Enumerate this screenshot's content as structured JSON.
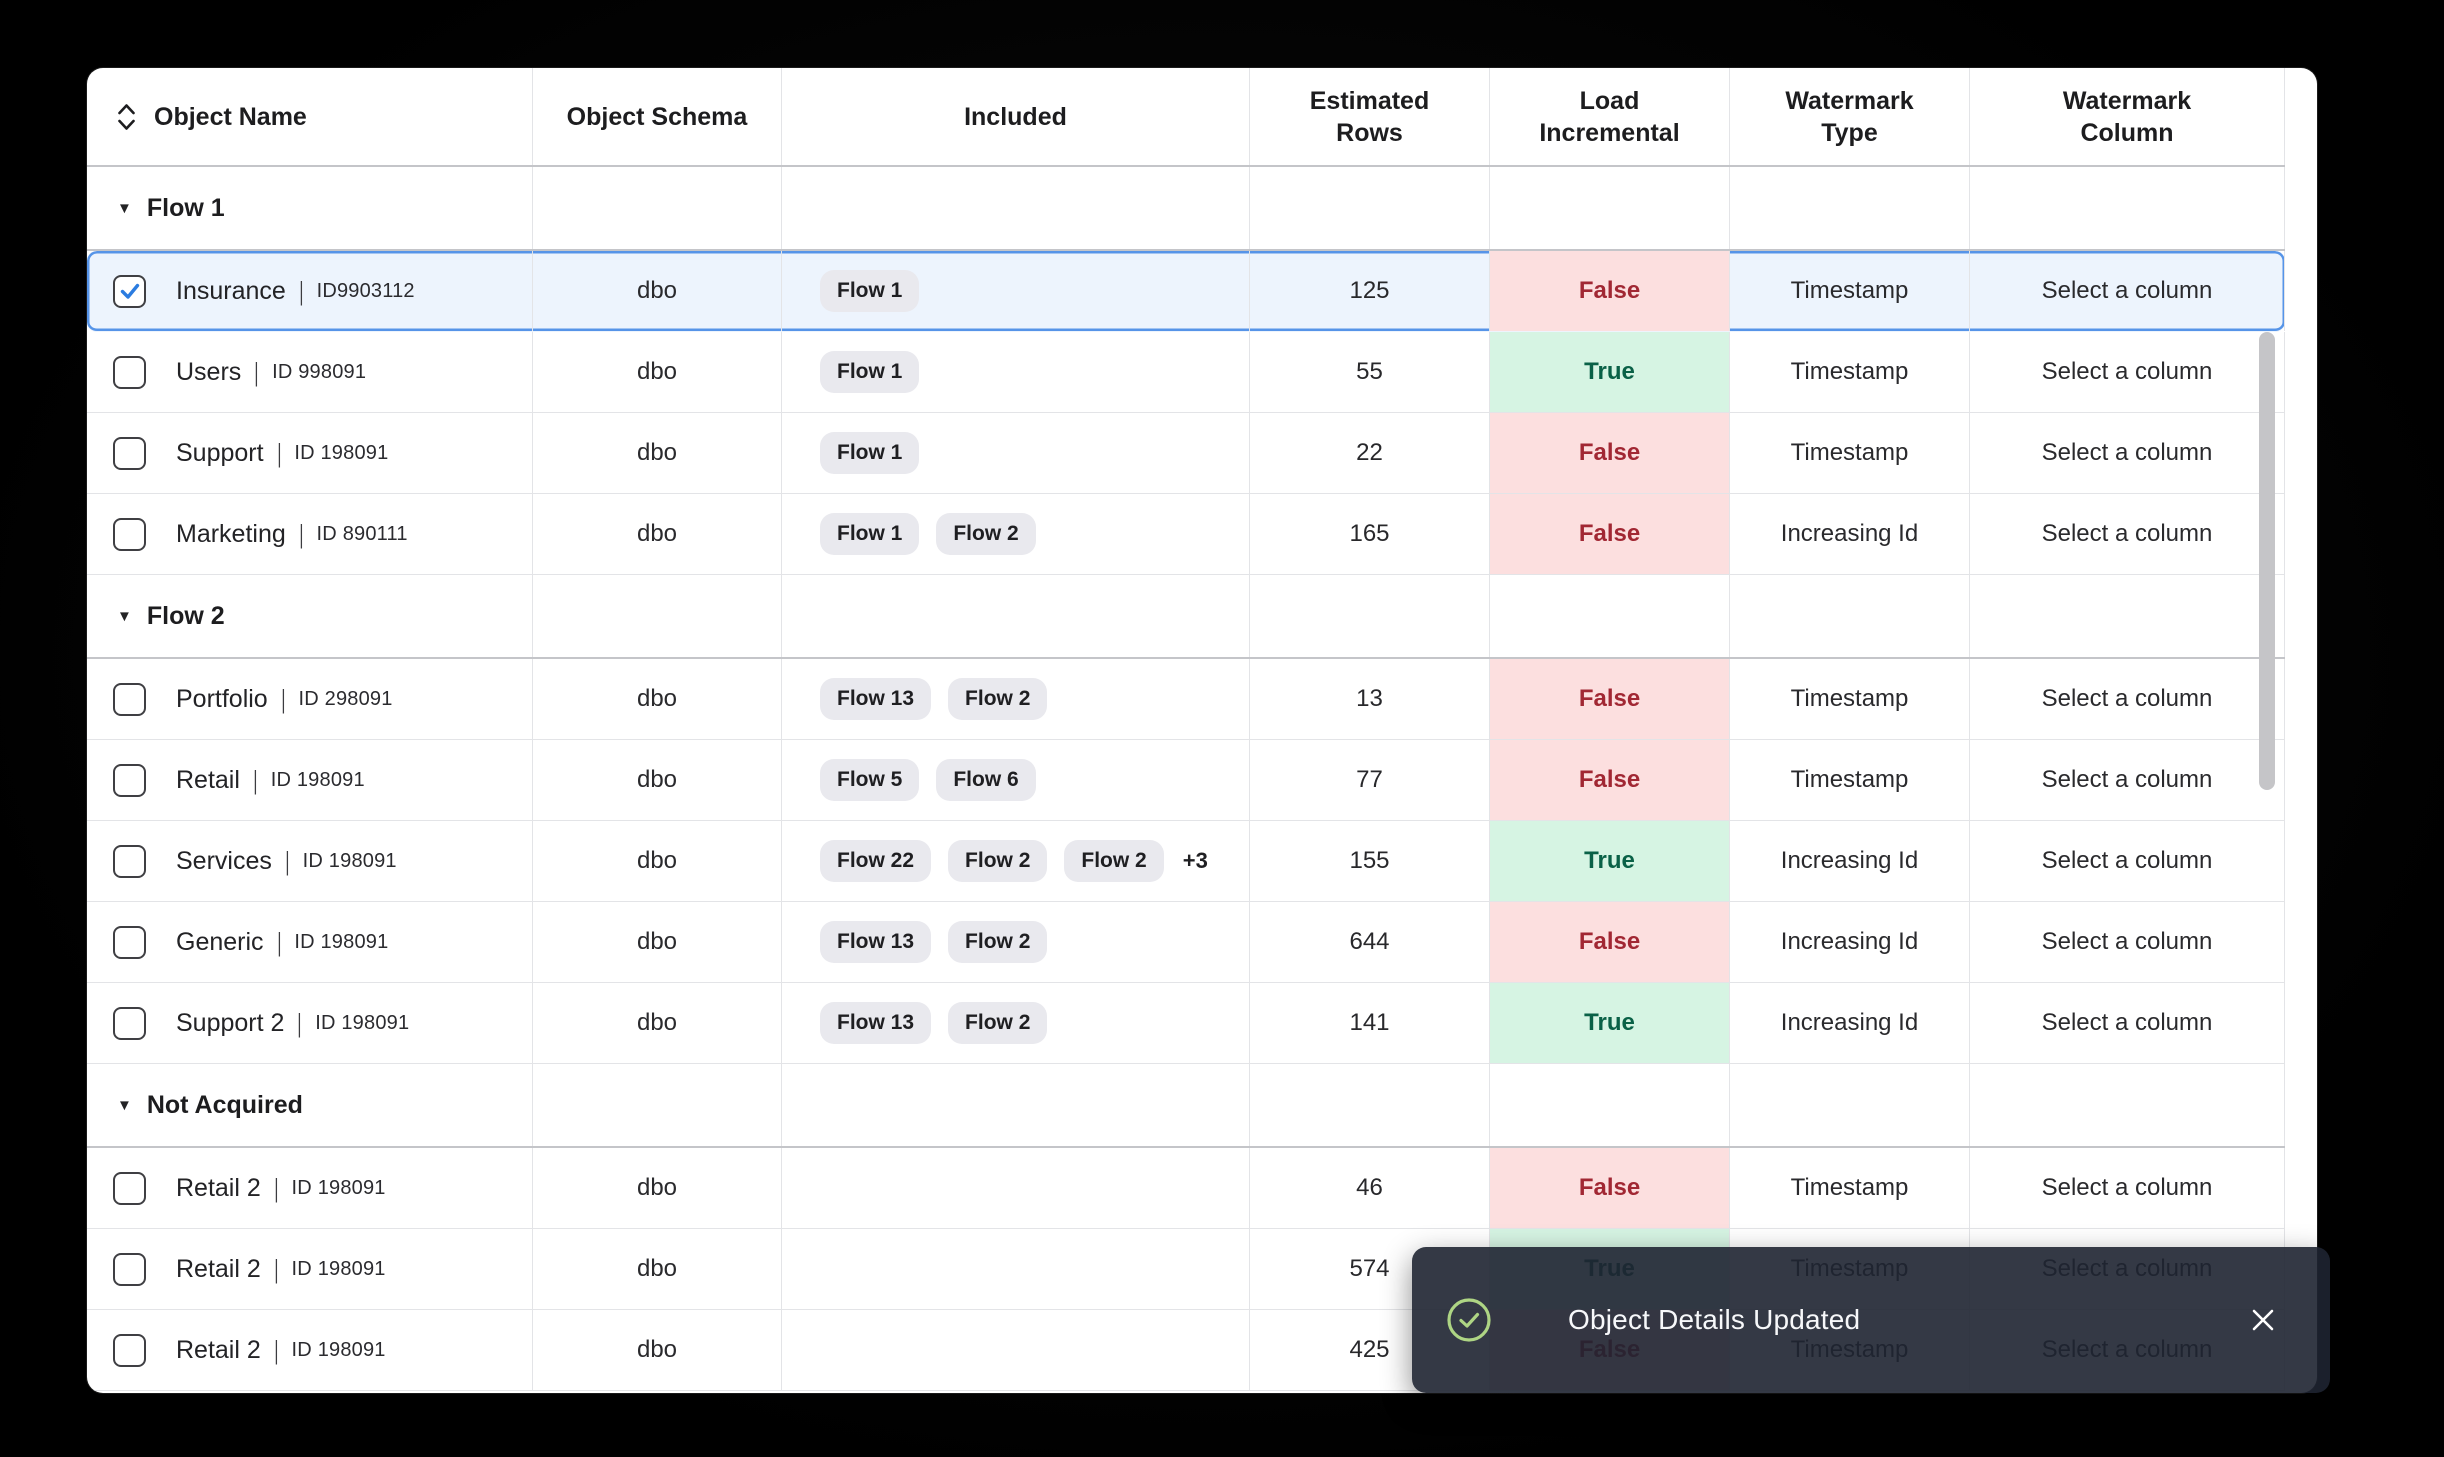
{
  "toast": {
    "message": "Object Details Updated"
  },
  "icons": {
    "collapse_triangle": "▼",
    "sort": "sort-up-down",
    "check_circle": "check-circle",
    "close": "close-x",
    "checkbox_check": "check"
  },
  "colors": {
    "true_bg": "#d6f4e3",
    "true_text": "#0a6147",
    "false_bg": "#fcdfdf",
    "false_text": "#a12733",
    "selected_border": "#5694e8",
    "selected_bg": "#edf4fd",
    "chip_bg": "#e9e9ee",
    "toast_bg": "#1e2431",
    "success_green": "#aed584",
    "checkbox_check_blue": "#2b7ce0"
  },
  "table": {
    "columns": [
      {
        "key": "name",
        "label": "Object Name",
        "sortable": true
      },
      {
        "key": "schema",
        "label": "Object Schema"
      },
      {
        "key": "included",
        "label": "Included"
      },
      {
        "key": "estimated_rows",
        "label": "Estimated\nRows"
      },
      {
        "key": "load_incremental",
        "label": "Load\nIncremental"
      },
      {
        "key": "watermark_type",
        "label": "Watermark\nType"
      },
      {
        "key": "watermark_column",
        "label": "Watermark\nColumn"
      }
    ],
    "rows": [
      {
        "type": "group",
        "label": "Flow 1"
      },
      {
        "type": "data",
        "name": "Insurance",
        "id": "ID9903112",
        "schema": "dbo",
        "chips": [
          "Flow 1"
        ],
        "more": "",
        "estimated_rows": "125",
        "load_incremental": "False",
        "watermark_type": "Timestamp",
        "watermark_column": "Select a column",
        "checked": true,
        "selected": true
      },
      {
        "type": "data",
        "name": "Users",
        "id": "ID 998091",
        "schema": "dbo",
        "chips": [
          "Flow 1"
        ],
        "more": "",
        "estimated_rows": "55",
        "load_incremental": "True",
        "watermark_type": "Timestamp",
        "watermark_column": "Select a column",
        "checked": false,
        "selected": false
      },
      {
        "type": "data",
        "name": "Support",
        "id": "ID 198091",
        "schema": "dbo",
        "chips": [
          "Flow 1"
        ],
        "more": "",
        "estimated_rows": "22",
        "load_incremental": "False",
        "watermark_type": "Timestamp",
        "watermark_column": "Select a column",
        "checked": false,
        "selected": false
      },
      {
        "type": "data",
        "name": "Marketing",
        "id": "ID 890111",
        "schema": "dbo",
        "chips": [
          "Flow 1",
          "Flow 2"
        ],
        "more": "",
        "estimated_rows": "165",
        "load_incremental": "False",
        "watermark_type": "Increasing Id",
        "watermark_column": "Select a column",
        "checked": false,
        "selected": false
      },
      {
        "type": "group",
        "label": "Flow 2"
      },
      {
        "type": "data",
        "name": "Portfolio",
        "id": "ID 298091",
        "schema": "dbo",
        "chips": [
          "Flow 13",
          "Flow 2"
        ],
        "more": "",
        "estimated_rows": "13",
        "load_incremental": "False",
        "watermark_type": "Timestamp",
        "watermark_column": "Select a column",
        "checked": false,
        "selected": false
      },
      {
        "type": "data",
        "name": "Retail",
        "id": "ID 198091",
        "schema": "dbo",
        "chips": [
          "Flow 5",
          "Flow 6"
        ],
        "more": "",
        "estimated_rows": "77",
        "load_incremental": "False",
        "watermark_type": "Timestamp",
        "watermark_column": "Select a column",
        "checked": false,
        "selected": false
      },
      {
        "type": "data",
        "name": "Services",
        "id": "ID 198091",
        "schema": "dbo",
        "chips": [
          "Flow 22",
          "Flow 2",
          "Flow 2"
        ],
        "more": "+3",
        "estimated_rows": "155",
        "load_incremental": "True",
        "watermark_type": "Increasing Id",
        "watermark_column": "Select a column",
        "checked": false,
        "selected": false
      },
      {
        "type": "data",
        "name": "Generic",
        "id": "ID 198091",
        "schema": "dbo",
        "chips": [
          "Flow 13",
          "Flow 2"
        ],
        "more": "",
        "estimated_rows": "644",
        "load_incremental": "False",
        "watermark_type": "Increasing Id",
        "watermark_column": "Select a column",
        "checked": false,
        "selected": false
      },
      {
        "type": "data",
        "name": "Support 2",
        "id": "ID 198091",
        "schema": "dbo",
        "chips": [
          "Flow 13",
          "Flow 2"
        ],
        "more": "",
        "estimated_rows": "141",
        "load_incremental": "True",
        "watermark_type": "Increasing Id",
        "watermark_column": "Select a column",
        "checked": false,
        "selected": false
      },
      {
        "type": "group",
        "label": "Not Acquired"
      },
      {
        "type": "data",
        "name": "Retail 2",
        "id": "ID 198091",
        "schema": "dbo",
        "chips": [],
        "more": "",
        "estimated_rows": "46",
        "load_incremental": "False",
        "watermark_type": "Timestamp",
        "watermark_column": "Select a column",
        "checked": false,
        "selected": false
      },
      {
        "type": "data",
        "name": "Retail 2",
        "id": "ID 198091",
        "schema": "dbo",
        "chips": [],
        "more": "",
        "estimated_rows": "574",
        "load_incremental": "True",
        "watermark_type": "Timestamp",
        "watermark_column": "Select a column",
        "checked": false,
        "selected": false
      },
      {
        "type": "data",
        "name": "Retail 2",
        "id": "ID 198091",
        "schema": "dbo",
        "chips": [],
        "more": "",
        "estimated_rows": "425",
        "load_incremental": "False",
        "watermark_type": "Timestamp",
        "watermark_column": "Select a column",
        "checked": false,
        "selected": false
      }
    ]
  }
}
